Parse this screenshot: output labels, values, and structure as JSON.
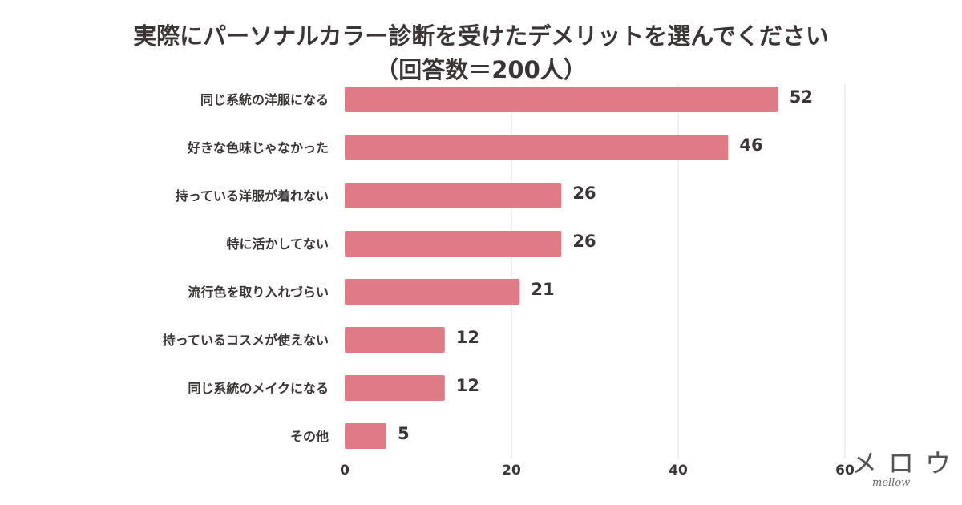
{
  "chart_data": {
    "type": "bar",
    "orientation": "horizontal",
    "title": "実際にパーソナルカラー診断を受けたデメリットを選んでください",
    "subtitle": "（回答数＝200人）",
    "categories": [
      "同じ系統の洋服になる",
      "好きな色味じゃなかった",
      "持っている洋服が着れない",
      "特に活かしてない",
      "流行色を取り入れづらい",
      "持っているコスメが使えない",
      "同じ系統のメイクになる",
      "その他"
    ],
    "values": [
      52,
      46,
      26,
      26,
      21,
      12,
      12,
      5
    ],
    "xlim": [
      0,
      60
    ],
    "xticks": [
      0,
      20,
      40,
      60
    ],
    "grid": true,
    "bar_color": "#de7b87",
    "data_labels": true
  },
  "logo": {
    "kana": "メロウ",
    "sub": "mellow"
  }
}
